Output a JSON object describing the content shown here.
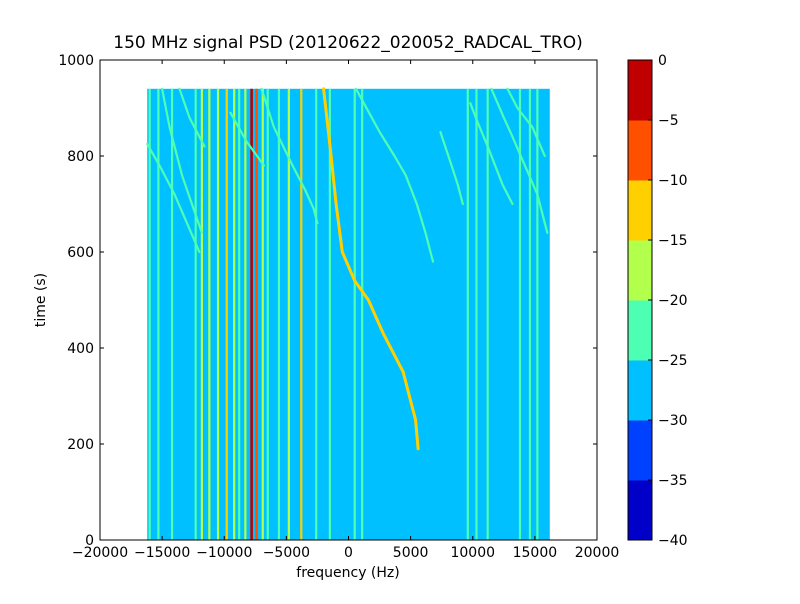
{
  "chart_data": {
    "type": "heatmap",
    "title": "150 MHz signal PSD (20120622_020052_RADCAL_TRO)",
    "xlabel": "frequency (Hz)",
    "ylabel": "time (s)",
    "xlim": [
      -20000,
      20000
    ],
    "ylim": [
      0,
      1000
    ],
    "xticks": [
      -20000,
      -15000,
      -10000,
      -5000,
      0,
      5000,
      10000,
      15000,
      20000
    ],
    "xtick_labels": [
      "−20000",
      "−15000",
      "−10000",
      "−5000",
      "0",
      "5000",
      "10000",
      "15000",
      "20000"
    ],
    "yticks": [
      0,
      200,
      400,
      600,
      800,
      1000
    ],
    "ytick_labels": [
      "0",
      "200",
      "400",
      "600",
      "800",
      "1000"
    ],
    "data_extent": {
      "x": [
        -16200,
        16200
      ],
      "y": [
        0,
        940
      ]
    },
    "background_level": -27.5,
    "colorbar": {
      "levels": [
        -40,
        -35,
        -30,
        -25,
        -20,
        -15,
        -10,
        -5,
        0
      ],
      "tick_labels": [
        "−40",
        "−35",
        "−30",
        "−25",
        "−20",
        "−15",
        "−10",
        "−5",
        "0"
      ],
      "colors": [
        "#0000c8",
        "#0040ff",
        "#00c0ff",
        "#4cffb2",
        "#b2ff4c",
        "#ffd000",
        "#ff5000",
        "#c00000"
      ]
    },
    "vertical_lines": [
      {
        "x": -16000,
        "level": -22
      },
      {
        "x": -15300,
        "level": -22
      },
      {
        "x": -14200,
        "level": -22
      },
      {
        "x": -12300,
        "level": -22
      },
      {
        "x": -11800,
        "level": -17
      },
      {
        "x": -11200,
        "level": -20
      },
      {
        "x": -10500,
        "level": -17
      },
      {
        "x": -9800,
        "level": -12
      },
      {
        "x": -9200,
        "level": -17
      },
      {
        "x": -8800,
        "level": -22
      },
      {
        "x": -8300,
        "level": -17
      },
      {
        "x": -7800,
        "level": -2
      },
      {
        "x": -7400,
        "level": -7
      },
      {
        "x": -6900,
        "level": -17
      },
      {
        "x": -6500,
        "level": -22
      },
      {
        "x": -5600,
        "level": -22
      },
      {
        "x": -4800,
        "level": -17
      },
      {
        "x": -3800,
        "level": -12
      },
      {
        "x": -2600,
        "level": -22
      },
      {
        "x": -1500,
        "level": -22
      },
      {
        "x": 500,
        "level": -22
      },
      {
        "x": 1100,
        "level": -22
      },
      {
        "x": 9600,
        "level": -22
      },
      {
        "x": 10300,
        "level": -22
      },
      {
        "x": 11200,
        "level": -22
      },
      {
        "x": 13800,
        "level": -22
      },
      {
        "x": 14600,
        "level": -22
      },
      {
        "x": 15200,
        "level": -22
      }
    ],
    "tracks": [
      {
        "level": -12,
        "points": [
          [
            -2000,
            940
          ],
          [
            -1400,
            800
          ],
          [
            -1000,
            700
          ],
          [
            -500,
            600
          ],
          [
            500,
            540
          ],
          [
            1600,
            500
          ],
          [
            2800,
            430
          ],
          [
            4400,
            350
          ],
          [
            5000,
            290
          ],
          [
            5400,
            250
          ],
          [
            5600,
            190
          ]
        ]
      },
      {
        "level": -22,
        "points": [
          [
            -15000,
            940
          ],
          [
            -14400,
            860
          ],
          [
            -13400,
            760
          ],
          [
            -12600,
            700
          ],
          [
            -11800,
            640
          ]
        ]
      },
      {
        "level": -22,
        "points": [
          [
            -16200,
            825
          ],
          [
            -15200,
            780
          ],
          [
            -14000,
            720
          ],
          [
            -13000,
            660
          ],
          [
            -12000,
            600
          ]
        ]
      },
      {
        "level": -22,
        "points": [
          [
            -13600,
            940
          ],
          [
            -12800,
            880
          ],
          [
            -11600,
            820
          ]
        ]
      },
      {
        "level": -22,
        "points": [
          [
            -7000,
            940
          ],
          [
            -6000,
            860
          ],
          [
            -4500,
            780
          ],
          [
            -3500,
            730
          ],
          [
            -2800,
            690
          ],
          [
            -2500,
            660
          ]
        ]
      },
      {
        "level": -22,
        "points": [
          [
            -9500,
            890
          ],
          [
            -8200,
            830
          ],
          [
            -6800,
            780
          ]
        ]
      },
      {
        "level": -22,
        "points": [
          [
            600,
            940
          ],
          [
            2500,
            850
          ],
          [
            3700,
            800
          ],
          [
            4600,
            760
          ],
          [
            5500,
            700
          ],
          [
            6200,
            640
          ],
          [
            6800,
            580
          ]
        ]
      },
      {
        "level": -22,
        "points": [
          [
            11500,
            940
          ],
          [
            12500,
            880
          ],
          [
            13200,
            840
          ],
          [
            14200,
            780
          ],
          [
            15200,
            720
          ],
          [
            16000,
            640
          ]
        ]
      },
      {
        "level": -22,
        "points": [
          [
            12800,
            940
          ],
          [
            13600,
            900
          ],
          [
            14800,
            860
          ],
          [
            15800,
            800
          ]
        ]
      },
      {
        "level": -22,
        "points": [
          [
            9800,
            910
          ],
          [
            10400,
            870
          ],
          [
            11200,
            820
          ],
          [
            12400,
            740
          ],
          [
            13200,
            700
          ]
        ]
      },
      {
        "level": -22,
        "points": [
          [
            7400,
            850
          ],
          [
            8300,
            780
          ],
          [
            8800,
            740
          ],
          [
            9200,
            700
          ]
        ]
      }
    ]
  }
}
